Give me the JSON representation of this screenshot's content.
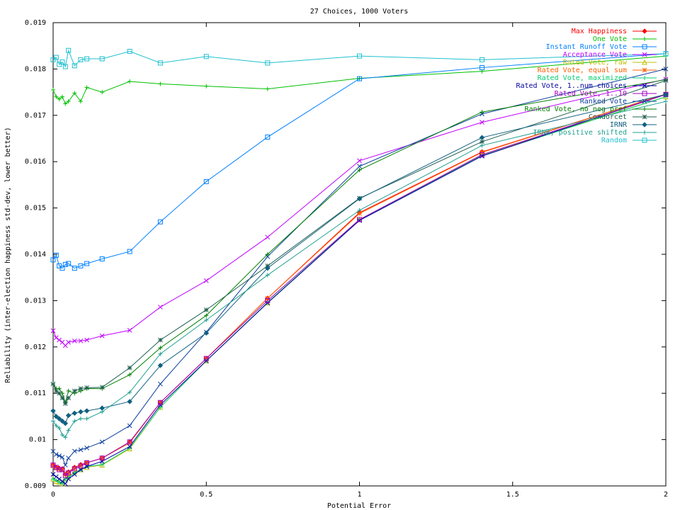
{
  "chart_data": {
    "type": "line",
    "title": "27 Choices, 1000 Voters",
    "xlabel": "Potential Error",
    "ylabel": "Reliability (inter-election happiness std-dev, lower better)",
    "xlim": [
      0,
      2
    ],
    "ylim": [
      0.009,
      0.019
    ],
    "grid": false,
    "legend_position": "top-right",
    "x_ticks": [
      {
        "value": 0,
        "label": "0"
      },
      {
        "value": 0.5,
        "label": "0.5"
      },
      {
        "value": 1,
        "label": "1"
      },
      {
        "value": 1.5,
        "label": "1.5"
      },
      {
        "value": 2,
        "label": "2"
      }
    ],
    "y_ticks": [
      {
        "value": 0.009,
        "label": "0.009"
      },
      {
        "value": 0.01,
        "label": "0.01"
      },
      {
        "value": 0.011,
        "label": "0.011"
      },
      {
        "value": 0.012,
        "label": "0.012"
      },
      {
        "value": 0.013,
        "label": "0.013"
      },
      {
        "value": 0.014,
        "label": "0.014"
      },
      {
        "value": 0.015,
        "label": "0.015"
      },
      {
        "value": 0.016,
        "label": "0.016"
      },
      {
        "value": 0.017,
        "label": "0.017"
      },
      {
        "value": 0.018,
        "label": "0.018"
      },
      {
        "value": 0.019,
        "label": "0.019"
      }
    ],
    "x": [
      0,
      0.01,
      0.02,
      0.03,
      0.04,
      0.05,
      0.07,
      0.09,
      0.11,
      0.16,
      0.25,
      0.35,
      0.5,
      0.7,
      1,
      1.4,
      2
    ],
    "series": [
      {
        "name": "Max Happiness",
        "color": "#ff0000",
        "marker": "diamond",
        "values": [
          0.00945,
          0.0094,
          0.00938,
          0.00937,
          0.00925,
          0.0093,
          0.0094,
          0.00946,
          0.0095,
          0.0096,
          0.00995,
          0.0108,
          0.01175,
          0.01305,
          0.0149,
          0.01621,
          0.01746
        ]
      },
      {
        "name": "One Vote",
        "color": "#00c000",
        "marker": "plus",
        "values": [
          0.01755,
          0.0174,
          0.01735,
          0.0174,
          0.01725,
          0.0173,
          0.01748,
          0.0173,
          0.0176,
          0.0175,
          0.01773,
          0.01768,
          0.01763,
          0.01757,
          0.0178,
          0.01795,
          0.01828
        ]
      },
      {
        "name": "Instant Runoff Vote",
        "color": "#0080ff",
        "marker": "square",
        "values": [
          0.01388,
          0.01398,
          0.01375,
          0.0137,
          0.01378,
          0.0138,
          0.0137,
          0.01375,
          0.0138,
          0.0139,
          0.01406,
          0.0147,
          0.01557,
          0.01653,
          0.01779,
          0.01803,
          0.01833
        ]
      },
      {
        "name": "Acceptance Vote",
        "color": "#c000ff",
        "marker": "x",
        "values": [
          0.01235,
          0.0122,
          0.01215,
          0.0121,
          0.01203,
          0.0121,
          0.01213,
          0.01213,
          0.01215,
          0.01224,
          0.01236,
          0.01286,
          0.01343,
          0.01437,
          0.01602,
          0.01685,
          0.01778
        ]
      },
      {
        "name": "Rated Vote, raw",
        "color": "#c0c000",
        "marker": "triangle",
        "values": [
          0.00915,
          0.0091,
          0.00908,
          0.00905,
          0.00915,
          0.0092,
          0.0093,
          0.00935,
          0.0094,
          0.00945,
          0.0098,
          0.0107,
          0.0117,
          0.01295,
          0.01475,
          0.01615,
          0.0174
        ]
      },
      {
        "name": "Rated Vote, equal sum",
        "color": "#ff6000",
        "marker": "star",
        "values": [
          0.00943,
          0.00938,
          0.00936,
          0.00935,
          0.00925,
          0.00928,
          0.00938,
          0.00943,
          0.0095,
          0.0096,
          0.00993,
          0.0108,
          0.01175,
          0.01305,
          0.01488,
          0.0162,
          0.01746
        ]
      },
      {
        "name": "Rated Vote, maximized",
        "color": "#00d070",
        "marker": "plus",
        "values": [
          0.00915,
          0.00912,
          0.00908,
          0.00905,
          0.00915,
          0.00918,
          0.00928,
          0.00935,
          0.00942,
          0.00946,
          0.00982,
          0.0107,
          0.0117,
          0.01296,
          0.01474,
          0.01613,
          0.0174
        ]
      },
      {
        "name": "Rated Vote, 1..num choices",
        "color": "#0000a0",
        "marker": "x",
        "values": [
          0.00925,
          0.0092,
          0.00915,
          0.0091,
          0.00905,
          0.00915,
          0.00925,
          0.00935,
          0.00942,
          0.00953,
          0.00985,
          0.01075,
          0.0117,
          0.01295,
          0.01473,
          0.01612,
          0.01745
        ]
      },
      {
        "name": "Rated Vote, 1..10",
        "color": "#a000c0",
        "marker": "square",
        "values": [
          0.00945,
          0.0094,
          0.00935,
          0.00935,
          0.00922,
          0.00928,
          0.00937,
          0.00943,
          0.0095,
          0.0096,
          0.00995,
          0.0108,
          0.01175,
          0.013,
          0.01475,
          0.01615,
          0.01745
        ]
      },
      {
        "name": "Ranked Vote",
        "color": "#1040a0",
        "marker": "x",
        "values": [
          0.00975,
          0.00968,
          0.00965,
          0.00962,
          0.00945,
          0.0096,
          0.00975,
          0.00978,
          0.00982,
          0.00995,
          0.0103,
          0.0112,
          0.01232,
          0.01395,
          0.0159,
          0.01703,
          0.018
        ]
      },
      {
        "name": "Ranked Vote, no neg pref",
        "color": "#008000",
        "marker": "plus",
        "values": [
          0.0112,
          0.0111,
          0.0111,
          0.011,
          0.0108,
          0.01105,
          0.011,
          0.01105,
          0.0111,
          0.0111,
          0.0114,
          0.01198,
          0.01268,
          0.014,
          0.01582,
          0.01707,
          0.01777
        ]
      },
      {
        "name": "Condorcet",
        "color": "#206050",
        "marker": "star",
        "values": [
          0.0112,
          0.01105,
          0.011,
          0.0109,
          0.01078,
          0.0109,
          0.01105,
          0.0111,
          0.01112,
          0.01113,
          0.01155,
          0.01215,
          0.0128,
          0.01375,
          0.01521,
          0.01643,
          0.01775
        ]
      },
      {
        "name": "IRNR",
        "color": "#106080",
        "marker": "diamond",
        "values": [
          0.01062,
          0.0105,
          0.01045,
          0.0104,
          0.01035,
          0.01052,
          0.01057,
          0.0106,
          0.01062,
          0.01068,
          0.01082,
          0.0116,
          0.0123,
          0.0137,
          0.0152,
          0.01652,
          0.01745
        ]
      },
      {
        "name": "IRNR, positive shifted",
        "color": "#20a090",
        "marker": "plus",
        "values": [
          0.0104,
          0.0103,
          0.01025,
          0.0101,
          0.01005,
          0.0102,
          0.0104,
          0.01045,
          0.01045,
          0.0106,
          0.01102,
          0.01185,
          0.01258,
          0.01355,
          0.01495,
          0.01635,
          0.0173
        ]
      },
      {
        "name": "Random",
        "color": "#20c0d0",
        "marker": "square",
        "values": [
          0.0182,
          0.01825,
          0.0181,
          0.01815,
          0.01805,
          0.0184,
          0.01807,
          0.0182,
          0.01822,
          0.01822,
          0.01838,
          0.01813,
          0.01827,
          0.01813,
          0.01828,
          0.0182,
          0.01833
        ]
      }
    ]
  }
}
